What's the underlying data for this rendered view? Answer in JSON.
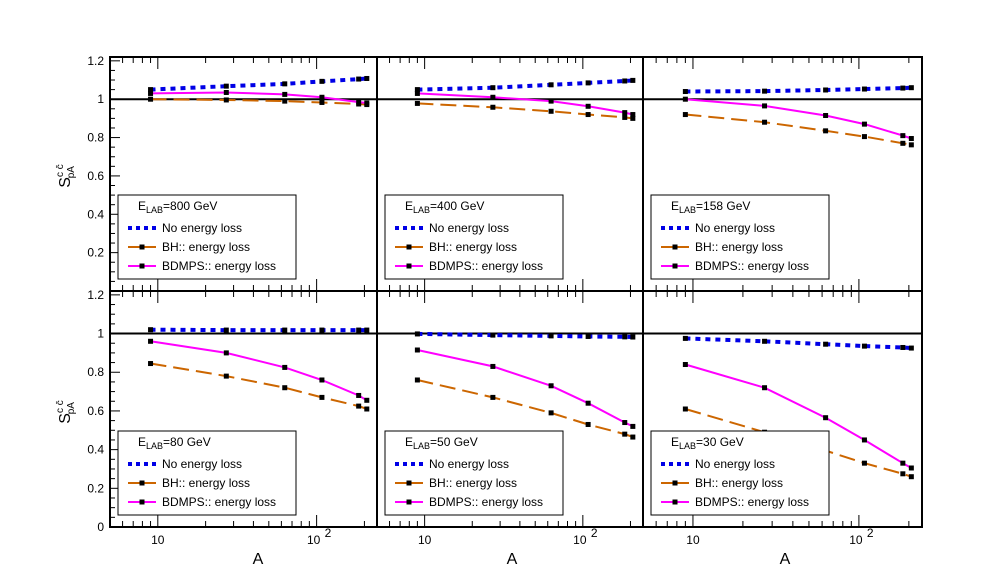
{
  "chart_data": {
    "type": "line",
    "x_scale": "log",
    "xlim": [
      5,
      240
    ],
    "xlabel": "A",
    "ylabel_main": "S",
    "ylabel_sup": "c c̄",
    "ylabel_sub": "pA",
    "x_tick_labels": [
      "10",
      "10",
      "2"
    ],
    "y_ticks_top": [
      "0.2",
      "0.4",
      "0.6",
      "0.8",
      "1",
      "1.2"
    ],
    "y_ticks_bottom": [
      "0",
      "0.2",
      "0.4",
      "0.6",
      "0.8",
      "1",
      "1.2"
    ],
    "ylim_top": [
      0,
      1.22
    ],
    "ylim_bottom": [
      0,
      1.22
    ],
    "reference_line": 1,
    "colors": {
      "no_loss": "#0000e6",
      "bh": "#cc6600",
      "bdmps": "#ff00ff"
    },
    "x": [
      9,
      27,
      63,
      108,
      184,
      207
    ],
    "panels": [
      {
        "title_prefix": "E",
        "title_sub": "LAB",
        "title_value": "=800 GeV",
        "series": [
          {
            "name": "No energy loss",
            "values": [
              1.05,
              1.068,
              1.08,
              1.093,
              1.105,
              1.108
            ]
          },
          {
            "name": "BH:: energy loss",
            "values": [
              1.0,
              0.996,
              0.99,
              0.983,
              0.975,
              0.972
            ]
          },
          {
            "name": "BDMPS:: energy loss",
            "values": [
              1.03,
              1.035,
              1.025,
              1.01,
              0.985,
              0.98
            ]
          }
        ]
      },
      {
        "title_prefix": "E",
        "title_sub": "LAB",
        "title_value": "=400 GeV",
        "series": [
          {
            "name": "No energy loss",
            "values": [
              1.05,
              1.06,
              1.075,
              1.085,
              1.095,
              1.098
            ]
          },
          {
            "name": "BH:: energy loss",
            "values": [
              0.978,
              0.958,
              0.937,
              0.92,
              0.905,
              0.9
            ]
          },
          {
            "name": "BDMPS:: energy loss",
            "values": [
              1.03,
              1.01,
              0.99,
              0.963,
              0.93,
              0.92
            ]
          }
        ]
      },
      {
        "title_prefix": "E",
        "title_sub": "LAB",
        "title_value": "=158 GeV",
        "series": [
          {
            "name": "No energy loss",
            "values": [
              1.04,
              1.042,
              1.048,
              1.053,
              1.058,
              1.06
            ]
          },
          {
            "name": "BH:: energy loss",
            "values": [
              0.92,
              0.88,
              0.835,
              0.805,
              0.77,
              0.762
            ]
          },
          {
            "name": "BDMPS:: energy loss",
            "values": [
              1.0,
              0.965,
              0.915,
              0.87,
              0.81,
              0.795
            ]
          }
        ]
      },
      {
        "title_prefix": "E",
        "title_sub": "LAB",
        "title_value": "=80 GeV",
        "series": [
          {
            "name": "No energy loss",
            "values": [
              1.02,
              1.018,
              1.018,
              1.018,
              1.018,
              1.018
            ]
          },
          {
            "name": "BH:: energy loss",
            "values": [
              0.845,
              0.78,
              0.72,
              0.67,
              0.625,
              0.61
            ]
          },
          {
            "name": "BDMPS:: energy loss",
            "values": [
              0.96,
              0.9,
              0.825,
              0.76,
              0.68,
              0.655
            ]
          }
        ]
      },
      {
        "title_prefix": "E",
        "title_sub": "LAB",
        "title_value": "=50 GeV",
        "series": [
          {
            "name": "No energy loss",
            "values": [
              0.998,
              0.992,
              0.988,
              0.985,
              0.983,
              0.982
            ]
          },
          {
            "name": "BH:: energy loss",
            "values": [
              0.76,
              0.67,
              0.59,
              0.53,
              0.48,
              0.465
            ]
          },
          {
            "name": "BDMPS:: energy loss",
            "values": [
              0.915,
              0.83,
              0.73,
              0.64,
              0.54,
              0.52
            ]
          }
        ]
      },
      {
        "title_prefix": "E",
        "title_sub": "LAB",
        "title_value": "=30 GeV",
        "series": [
          {
            "name": "No energy loss",
            "values": [
              0.975,
              0.96,
              0.945,
              0.935,
              0.928,
              0.925
            ]
          },
          {
            "name": "BH:: energy loss",
            "values": [
              0.61,
              0.49,
              0.395,
              0.33,
              0.275,
              0.26
            ]
          },
          {
            "name": "BDMPS:: energy loss",
            "values": [
              0.84,
              0.72,
              0.565,
              0.45,
              0.33,
              0.305
            ]
          }
        ]
      }
    ]
  }
}
